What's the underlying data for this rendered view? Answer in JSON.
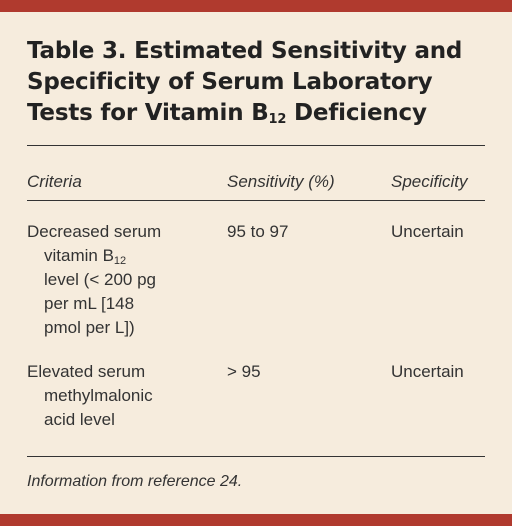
{
  "title": {
    "line1": "Table 3. Estimated Sensitivity and",
    "line2": "Specificity of Serum Laboratory",
    "line3_prefix": "Tests for Vitamin B",
    "line3_sub": "12",
    "line3_suffix": " Deficiency"
  },
  "columns": {
    "criteria": "Criteria",
    "sensitivity": "Sensitivity (%)",
    "specificity": "Specificity"
  },
  "rows": [
    {
      "criteria_line1": "Decreased serum",
      "criteria_line2_prefix": "vitamin B",
      "criteria_line2_sub": "12",
      "criteria_line3": "level (< 200 pg",
      "criteria_line4": "per mL [148",
      "criteria_line5": "pmol per L])",
      "sensitivity": "95 to 97",
      "specificity": "Uncertain"
    },
    {
      "criteria_line1": "Elevated serum",
      "criteria_line2": "methylmalonic",
      "criteria_line3": "acid level",
      "sensitivity": "> 95",
      "specificity": "Uncertain"
    }
  ],
  "footnote": "Information from reference 24.",
  "colors": {
    "accent": "#b03a2e",
    "background": "#f6ecdd",
    "text": "#333333"
  }
}
